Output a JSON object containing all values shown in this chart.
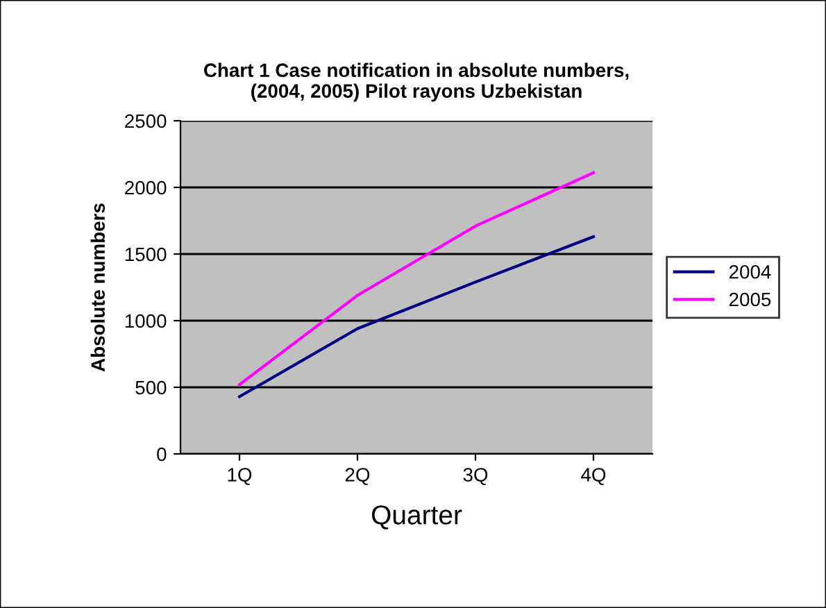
{
  "chart_data": {
    "type": "line",
    "title": "Chart 1 Case notification in absolute numbers,\n(2004, 2005) Pilot rayons Uzbekistan",
    "xlabel": "Quarter",
    "ylabel": "Absolute numbers",
    "categories": [
      "1Q",
      "2Q",
      "3Q",
      "4Q"
    ],
    "series": [
      {
        "name": "2004",
        "color": "#000080",
        "values": [
          430,
          940,
          1290,
          1630
        ]
      },
      {
        "name": "2005",
        "color": "#ff00ff",
        "values": [
          520,
          1190,
          1710,
          2110
        ]
      }
    ],
    "ylim": [
      0,
      2500
    ],
    "yticks": [
      0,
      500,
      1000,
      1500,
      2000,
      2500
    ],
    "grid": "y",
    "legend": "right",
    "marker": "none",
    "line_style": "solid"
  }
}
